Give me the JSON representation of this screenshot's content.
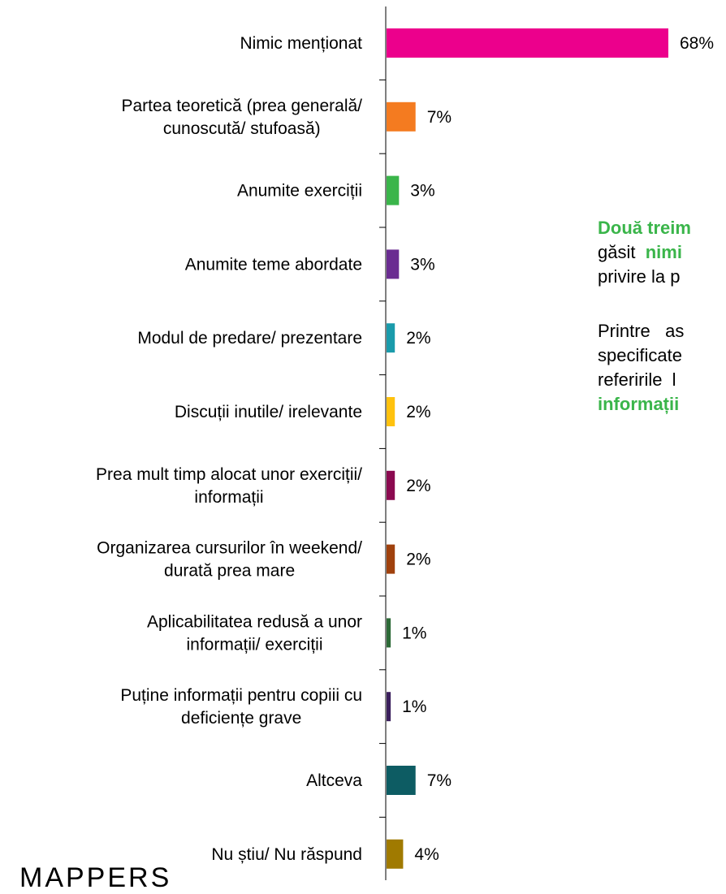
{
  "chart_data": {
    "type": "bar",
    "orientation": "horizontal",
    "categories": [
      [
        "Nimic menționat"
      ],
      [
        "Partea teoretică (prea generală/",
        "cunoscută/ stufoasă)"
      ],
      [
        "Anumite exerciții"
      ],
      [
        "Anumite teme abordate"
      ],
      [
        "Modul de predare/ prezentare"
      ],
      [
        "Discuții inutile/ irelevante"
      ],
      [
        "Prea mult timp alocat unor exerciții/",
        "informații"
      ],
      [
        "Organizarea cursurilor în weekend/",
        "durată prea mare"
      ],
      [
        "Aplicabilitatea redusă a unor",
        "informații/ exerciții"
      ],
      [
        "Puține informații pentru copiii cu",
        "deficiențe grave"
      ],
      [
        "Altceva"
      ],
      [
        "Nu știu/ Nu răspund"
      ]
    ],
    "values": [
      68,
      7,
      3,
      3,
      2,
      2,
      2,
      2,
      1,
      1,
      7,
      4
    ],
    "value_labels": [
      "68%",
      "7%",
      "3%",
      "3%",
      "2%",
      "2%",
      "2%",
      "2%",
      "1%",
      "1%",
      "7%",
      "4%"
    ],
    "colors": [
      "#ec008c",
      "#f47b20",
      "#3ab54a",
      "#6a2c91",
      "#1a9bab",
      "#ffc20e",
      "#8b0a50",
      "#a0410d",
      "#2d6a37",
      "#3b1f5c",
      "#0d5c63",
      "#a07a00"
    ],
    "xlim": [
      0,
      68
    ]
  },
  "side_text": {
    "p1_part1": "Două treim",
    "p1_part2": "găsit",
    "p1_part3": "nimi",
    "p1_part4": "privire la p",
    "p2_line1": "Printre   as",
    "p2_line2": "specificate",
    "p2_line3": "referirile  l",
    "p2_part4": "informații"
  },
  "logo_text": "MAPPERS",
  "accent_color": "#3ab54a"
}
